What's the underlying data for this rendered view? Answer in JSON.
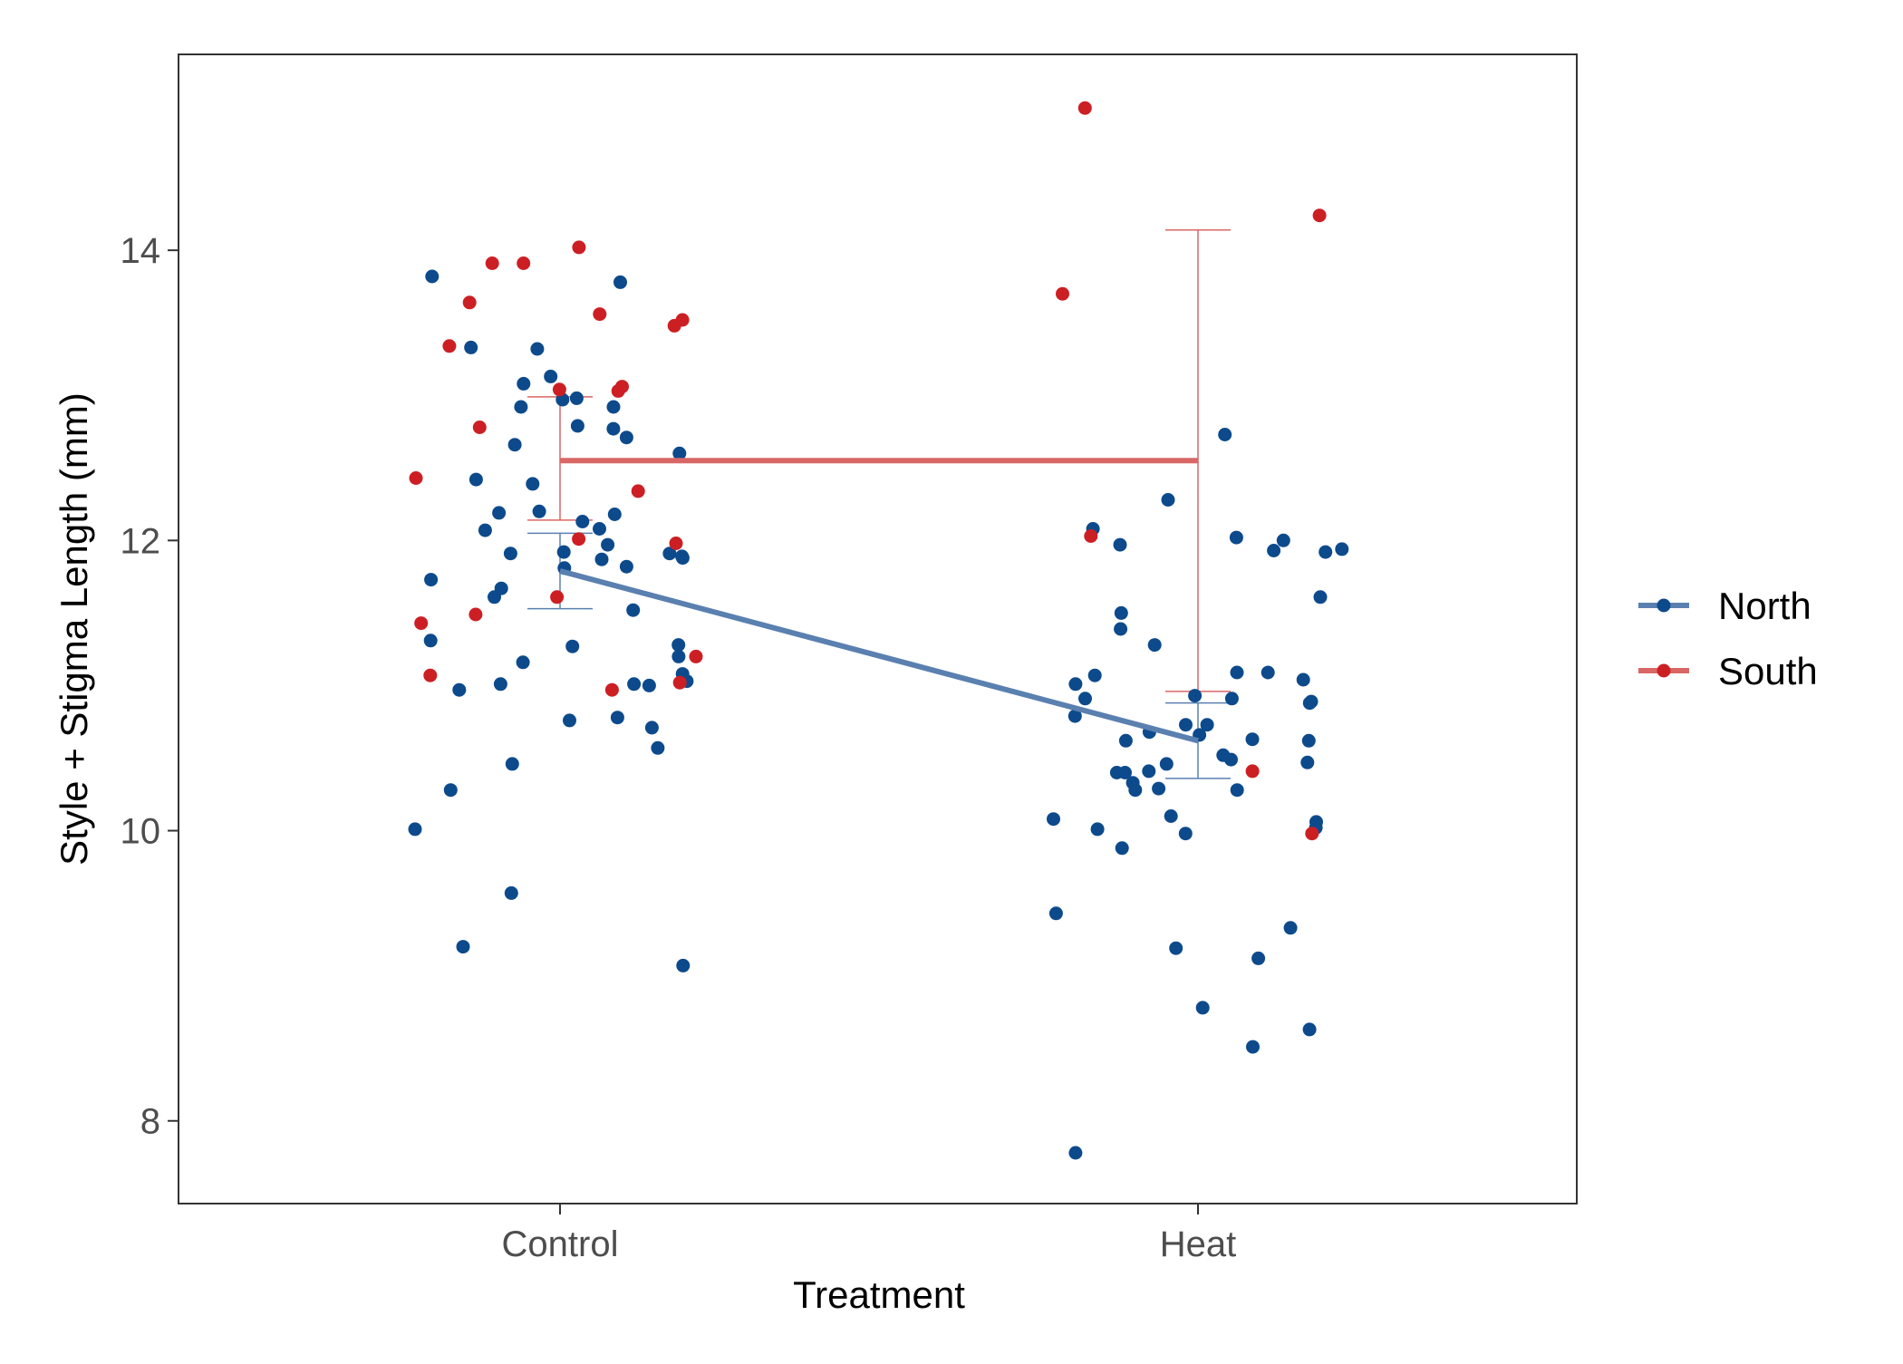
{
  "chart_data": {
    "type": "scatter",
    "xlabel": "Treatment",
    "ylabel": "Style + Stigma Length (mm)",
    "categories": [
      "Control",
      "Heat"
    ],
    "ylim": [
      7.43,
      15.35
    ],
    "yticks": [
      8,
      10,
      12,
      14
    ],
    "grid": false,
    "legend": {
      "placement": "right",
      "entries": [
        {
          "name": "North",
          "color": "#0d4a8c"
        },
        {
          "name": "South",
          "color": "#cc1f24"
        }
      ]
    },
    "series": [
      {
        "name": "North",
        "color": "#0d4a8c",
        "line_color": "#5a80b0",
        "means": [
          11.79,
          10.62
        ],
        "error_bars": [
          [
            11.53,
            12.05
          ],
          [
            10.36,
            10.88
          ]
        ],
        "points": [
          [
            "Control",
            10.01
          ],
          [
            "Control",
            11.89
          ],
          [
            "Control",
            12.19
          ],
          [
            "Control",
            12.42
          ],
          [
            "Control",
            12.71
          ],
          [
            "Control",
            10.76
          ],
          [
            "Control",
            11.91
          ],
          [
            "Control",
            11.52
          ],
          [
            "Control",
            11.01
          ],
          [
            "Control",
            11.27
          ],
          [
            "Control",
            12.92
          ],
          [
            "Control",
            12.08
          ],
          [
            "Control",
            10.71
          ],
          [
            "Control",
            12.07
          ],
          [
            "Control",
            13.08
          ],
          [
            "Control",
            13.78
          ],
          [
            "Control",
            10.78
          ],
          [
            "Control",
            11.31
          ],
          [
            "Control",
            12.77
          ],
          [
            "Control",
            13.13
          ],
          [
            "Control",
            11.08
          ],
          [
            "Control",
            11.0
          ],
          [
            "Control",
            10.28
          ],
          [
            "Control",
            11.92
          ],
          [
            "Control",
            11.88
          ],
          [
            "Control",
            12.18
          ],
          [
            "Control",
            11.87
          ],
          [
            "Control",
            12.13
          ],
          [
            "Control",
            12.6
          ],
          [
            "Control",
            11.28
          ],
          [
            "Control",
            11.16
          ],
          [
            "Control",
            10.46
          ],
          [
            "Control",
            10.57
          ],
          [
            "Control",
            9.57
          ],
          [
            "Control",
            10.97
          ],
          [
            "Control",
            11.67
          ],
          [
            "Control",
            12.2
          ],
          [
            "Control",
            11.01
          ],
          [
            "Control",
            11.03
          ],
          [
            "Control",
            12.98
          ],
          [
            "Control",
            11.82
          ],
          [
            "Control",
            11.91
          ],
          [
            "Control",
            13.82
          ],
          [
            "Control",
            11.61
          ],
          [
            "Control",
            12.79
          ],
          [
            "Control",
            12.97
          ],
          [
            "Control",
            13.32
          ],
          [
            "Control",
            13.33
          ],
          [
            "Control",
            11.2
          ],
          [
            "Control",
            11.73
          ],
          [
            "Control",
            12.92
          ],
          [
            "Control",
            12.66
          ],
          [
            "Control",
            11.97
          ],
          [
            "Control",
            9.07
          ],
          [
            "Control",
            11.81
          ],
          [
            "Control",
            9.2
          ],
          [
            "Control",
            12.39
          ],
          [
            "Heat",
            10.28
          ],
          [
            "Heat",
            10.29
          ],
          [
            "Heat",
            9.19
          ],
          [
            "Heat",
            10.68
          ],
          [
            "Heat",
            10.73
          ],
          [
            "Heat",
            10.49
          ],
          [
            "Heat",
            11.39
          ],
          [
            "Heat",
            10.02
          ],
          [
            "Heat",
            10.73
          ],
          [
            "Heat",
            11.04
          ],
          [
            "Heat",
            10.28
          ],
          [
            "Heat",
            11.09
          ],
          [
            "Heat",
            8.78
          ],
          [
            "Heat",
            10.66
          ],
          [
            "Heat",
            8.51
          ],
          [
            "Heat",
            11.92
          ],
          [
            "Heat",
            12.28
          ],
          [
            "Heat",
            9.12
          ],
          [
            "Heat",
            10.62
          ],
          [
            "Heat",
            10.52
          ],
          [
            "Heat",
            11.28
          ],
          [
            "Heat",
            10.41
          ],
          [
            "Heat",
            10.46
          ],
          [
            "Heat",
            12.0
          ],
          [
            "Heat",
            10.47
          ],
          [
            "Heat",
            10.91
          ],
          [
            "Heat",
            9.33
          ],
          [
            "Heat",
            7.78
          ],
          [
            "Heat",
            10.1
          ],
          [
            "Heat",
            10.01
          ],
          [
            "Heat",
            11.01
          ],
          [
            "Heat",
            11.94
          ],
          [
            "Heat",
            10.4
          ],
          [
            "Heat",
            12.02
          ],
          [
            "Heat",
            11.07
          ],
          [
            "Heat",
            9.98
          ],
          [
            "Heat",
            12.73
          ],
          [
            "Heat",
            12.08
          ],
          [
            "Heat",
            11.61
          ],
          [
            "Heat",
            8.63
          ],
          [
            "Heat",
            10.89
          ],
          [
            "Heat",
            10.88
          ],
          [
            "Heat",
            10.06
          ],
          [
            "Heat",
            11.93
          ],
          [
            "Heat",
            10.33
          ],
          [
            "Heat",
            9.43
          ],
          [
            "Heat",
            10.4
          ],
          [
            "Heat",
            10.79
          ],
          [
            "Heat",
            10.08
          ],
          [
            "Heat",
            10.91
          ],
          [
            "Heat",
            11.97
          ],
          [
            "Heat",
            11.09
          ],
          [
            "Heat",
            10.93
          ],
          [
            "Heat",
            10.63
          ],
          [
            "Heat",
            9.88
          ],
          [
            "Heat",
            10.62
          ],
          [
            "Heat",
            11.5
          ]
        ]
      },
      {
        "name": "South",
        "color": "#cc1f24",
        "line_color": "#d96766",
        "means": [
          12.55,
          12.55
        ],
        "error_bars": [
          [
            12.14,
            12.99
          ],
          [
            10.96,
            14.14
          ]
        ],
        "points": [
          [
            "Control",
            13.91
          ],
          [
            "Control",
            13.48
          ],
          [
            "Control",
            13.34
          ],
          [
            "Control",
            11.61
          ],
          [
            "Control",
            12.43
          ],
          [
            "Control",
            11.02
          ],
          [
            "Control",
            13.56
          ],
          [
            "Control",
            13.52
          ],
          [
            "Control",
            11.43
          ],
          [
            "Control",
            11.98
          ],
          [
            "Control",
            13.64
          ],
          [
            "Control",
            11.2
          ],
          [
            "Control",
            14.02
          ],
          [
            "Control",
            10.97
          ],
          [
            "Control",
            13.91
          ],
          [
            "Control",
            12.78
          ],
          [
            "Control",
            11.49
          ],
          [
            "Control",
            12.01
          ],
          [
            "Control",
            11.07
          ],
          [
            "Control",
            12.34
          ],
          [
            "Control",
            13.03
          ],
          [
            "Control",
            13.06
          ],
          [
            "Control",
            13.04
          ],
          [
            "Heat",
            13.7
          ],
          [
            "Heat",
            14.98
          ],
          [
            "Heat",
            14.24
          ],
          [
            "Heat",
            12.03
          ],
          [
            "Heat",
            10.41
          ],
          [
            "Heat",
            9.98
          ]
        ]
      }
    ]
  }
}
